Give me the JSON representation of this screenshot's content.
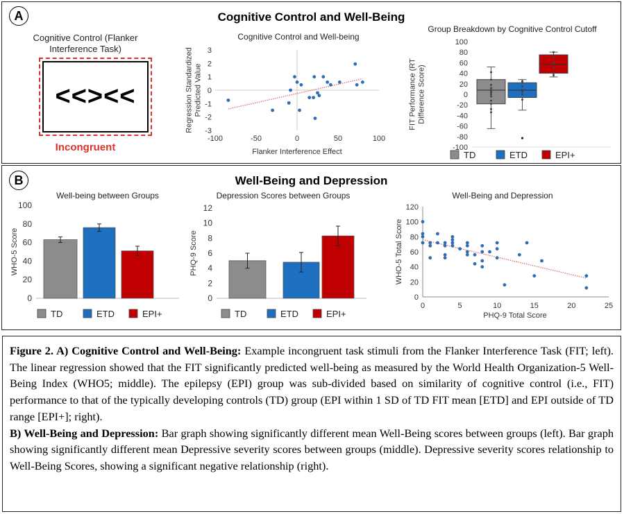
{
  "panel_a": {
    "letter": "A",
    "title": "Cognitive Control and Well-Being",
    "stimulus_label": "Cognitive Control (Flanker Interference Task)",
    "stimulus": "<<><<",
    "stimulus_caption": "Incongruent"
  },
  "panel_b": {
    "letter": "B",
    "title": "Well-Being and Depression"
  },
  "caption": {
    "a_lead": "Figure 2. A) Cognitive Control and Well-Being:",
    "a_text": " Example incongruent task stimuli from the Flanker Interference Task (FIT; left). The linear regression showed that the FIT significantly predicted well-being as measured by the World Health Organization-5 Well-Being Index (WHO5; middle). The epilepsy (EPI) group was sub-divided based on similarity of cognitive control (i.e., FIT) performance to that of the typically developing controls (TD) group (EPI within 1 SD of TD FIT mean [ETD] and EPI outside of TD range [EPI+]; right).",
    "b_lead": "B) Well-Being and Depression:",
    "b_text": " Bar graph showing significantly different mean Well-Being scores between groups (left). Bar graph showing significantly different mean Depressive severity scores between groups (middle). Depressive severity scores relationship to Well-Being Scores, showing a significant negative relationship (right)."
  },
  "colors": {
    "TD": "#8c8c8c",
    "ETD": "#1f6fc0",
    "EPI+": "#c00000",
    "point": "#2e6db4",
    "trend": "#e06060"
  },
  "chart_data": [
    {
      "type": "scatter",
      "title": "Cognitive Control and Well-being",
      "xlabel": "Flanker Interference Effect",
      "ylabel": [
        "Regression Standardized",
        "Predicted Value"
      ],
      "xlim": [
        -100,
        100
      ],
      "ylim": [
        -3,
        3
      ],
      "xticks": [
        -100,
        -50,
        0,
        50,
        100
      ],
      "yticks": [
        -3,
        -2,
        -1,
        0,
        1,
        2,
        3
      ],
      "points": [
        [
          -84,
          -0.75
        ],
        [
          -30,
          -1.5
        ],
        [
          -10,
          -0.95
        ],
        [
          -8,
          0
        ],
        [
          -3,
          1
        ],
        [
          0,
          0.6
        ],
        [
          3,
          -1.5
        ],
        [
          5,
          0.4
        ],
        [
          15,
          -0.55
        ],
        [
          20,
          -0.55
        ],
        [
          21,
          1
        ],
        [
          22,
          -2.1
        ],
        [
          25,
          -0.2
        ],
        [
          27,
          -0.4
        ],
        [
          32,
          1
        ],
        [
          37,
          0.6
        ],
        [
          41,
          0.4
        ],
        [
          52,
          0.6
        ],
        [
          71,
          1.95
        ],
        [
          73,
          0.4
        ],
        [
          80,
          0.6
        ]
      ],
      "trendline": [
        [
          -84,
          -1.4
        ],
        [
          80,
          0.85
        ]
      ]
    },
    {
      "type": "box",
      "title": "Group Breakdown by Cognitive Control Cutoff",
      "ylabel": [
        "FIT Performance (RT",
        "Difference Score)"
      ],
      "ylim": [
        -100,
        100
      ],
      "yticks": [
        -100,
        -80,
        -60,
        -40,
        -20,
        0,
        20,
        40,
        60,
        80,
        100
      ],
      "groups": [
        {
          "name": "TD",
          "min": -65,
          "q1": -18,
          "median": 8,
          "mean": 5,
          "q3": 28,
          "max": 52,
          "points": [
            42,
            28,
            18,
            12,
            8,
            4,
            0,
            -4,
            -12,
            -18,
            -28,
            -34
          ],
          "outliers": []
        },
        {
          "name": "ETD",
          "min": -30,
          "q1": -6,
          "median": 8,
          "mean": 8,
          "q3": 22,
          "max": 28,
          "points": [
            25,
            22,
            15,
            5,
            0,
            -10
          ],
          "outliers": [
            -83
          ]
        },
        {
          "name": "EPI+",
          "min": 33,
          "q1": 40,
          "median": 57,
          "mean": 58,
          "q3": 75,
          "max": 80,
          "points": [
            80,
            70,
            60,
            50,
            40,
            36
          ],
          "outliers": []
        }
      ],
      "legend": [
        "TD",
        "ETD",
        "EPI+"
      ]
    },
    {
      "type": "bar",
      "title": "Well-being between Groups",
      "ylabel": "WHO-5 Score",
      "ylim": [
        0,
        100
      ],
      "yticks": [
        0,
        20,
        40,
        60,
        80,
        100
      ],
      "categories": [
        "TD",
        "ETD",
        "EPI+"
      ],
      "values": [
        63,
        76,
        51
      ],
      "errors": [
        3,
        4,
        5
      ],
      "legend": [
        "TD",
        "ETD",
        "EPI+"
      ]
    },
    {
      "type": "bar",
      "title": "Depression Scores between Groups",
      "ylabel": "PHQ-9 Score",
      "ylim": [
        0,
        12
      ],
      "yticks": [
        0,
        2,
        4,
        6,
        8,
        10,
        12
      ],
      "categories": [
        "TD",
        "ETD",
        "EPI+"
      ],
      "values": [
        5.0,
        4.8,
        8.3
      ],
      "errors": [
        1.0,
        1.3,
        1.3
      ],
      "legend": [
        "TD",
        "ETD",
        "EPI+"
      ]
    },
    {
      "type": "scatter",
      "title": "Well-Being and Depression",
      "xlabel": "PHQ-9 Total Score",
      "ylabel": [
        "WHO-5 Total Score"
      ],
      "xlim": [
        0,
        25
      ],
      "ylim": [
        0,
        120
      ],
      "xticks": [
        0,
        5,
        10,
        15,
        20,
        25
      ],
      "yticks": [
        0,
        20,
        40,
        60,
        80,
        100,
        120
      ],
      "points": [
        [
          0,
          100
        ],
        [
          0,
          84
        ],
        [
          0,
          80
        ],
        [
          0,
          72
        ],
        [
          1,
          72
        ],
        [
          1,
          68
        ],
        [
          1,
          52
        ],
        [
          2,
          84
        ],
        [
          2,
          72
        ],
        [
          3,
          72
        ],
        [
          3,
          68
        ],
        [
          3,
          56
        ],
        [
          3,
          52
        ],
        [
          4,
          80
        ],
        [
          4,
          76
        ],
        [
          4,
          72
        ],
        [
          4,
          68
        ],
        [
          5,
          64
        ],
        [
          6,
          72
        ],
        [
          6,
          68
        ],
        [
          6,
          60
        ],
        [
          6,
          56
        ],
        [
          7,
          56
        ],
        [
          7,
          44
        ],
        [
          8,
          68
        ],
        [
          8,
          60
        ],
        [
          8,
          48
        ],
        [
          8,
          40
        ],
        [
          9,
          60
        ],
        [
          10,
          72
        ],
        [
          10,
          64
        ],
        [
          10,
          52
        ],
        [
          11,
          16
        ],
        [
          13,
          56
        ],
        [
          14,
          72
        ],
        [
          15,
          28
        ],
        [
          16,
          48
        ],
        [
          22,
          28
        ],
        [
          22,
          12
        ]
      ],
      "trendline": [
        [
          0,
          76
        ],
        [
          22,
          25
        ]
      ]
    }
  ]
}
